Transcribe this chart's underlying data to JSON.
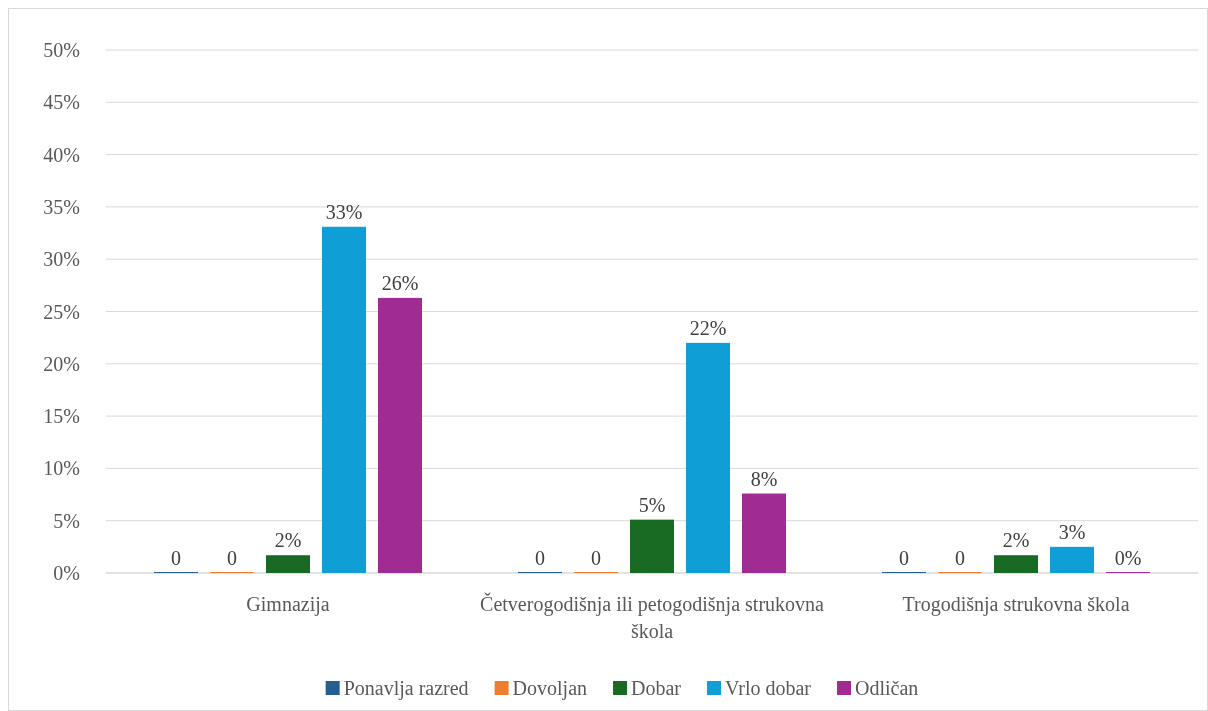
{
  "chart_data": {
    "type": "bar",
    "categories": [
      "Gimnazija",
      "Četverogodišnja ili petogodišnja strukovna škola",
      "Trogodišnja strukovna škola"
    ],
    "series": [
      {
        "name": "Ponavlja razred",
        "color": "#255e91",
        "values": [
          0,
          0,
          0
        ],
        "value_labels": [
          "0",
          "0",
          "0"
        ]
      },
      {
        "name": "Dovoljan",
        "color": "#ed7d31",
        "values": [
          0,
          0,
          0
        ],
        "value_labels": [
          "0",
          "0",
          "0"
        ]
      },
      {
        "name": "Dobar",
        "color": "#196b24",
        "values": [
          1.7,
          5.1,
          1.7
        ],
        "value_labels": [
          "2%",
          "5%",
          "2%"
        ]
      },
      {
        "name": "Vrlo dobar",
        "color": "#0f9ed5",
        "values": [
          33.1,
          22.0,
          2.5
        ],
        "value_labels": [
          "33%",
          "22%",
          "3%"
        ]
      },
      {
        "name": "Odličan",
        "color": "#a02b93",
        "values": [
          26.3,
          7.6,
          0
        ],
        "value_labels": [
          "26%",
          "8%",
          "0%"
        ]
      }
    ],
    "ylim": [
      0,
      50
    ],
    "yticks": [
      {
        "value": 0,
        "label": "0%"
      },
      {
        "value": 5,
        "label": "5%"
      },
      {
        "value": 10,
        "label": "10%"
      },
      {
        "value": 15,
        "label": "15%"
      },
      {
        "value": 20,
        "label": "20%"
      },
      {
        "value": 25,
        "label": "25%"
      },
      {
        "value": 30,
        "label": "30%"
      },
      {
        "value": 35,
        "label": "35%"
      },
      {
        "value": 40,
        "label": "40%"
      },
      {
        "value": 45,
        "label": "45%"
      },
      {
        "value": 50,
        "label": "50%"
      }
    ],
    "grid": "y",
    "legend": "bottom"
  }
}
